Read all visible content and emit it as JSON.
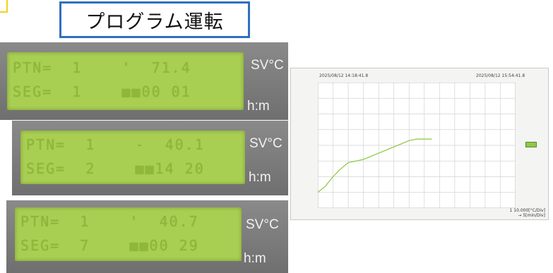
{
  "title": "プログラム運転",
  "displays": [
    {
      "line1": "PTN=  1    '  71.4",
      "line2": "SEG=  1    ■■00 01",
      "unit_top": "SV°C",
      "unit_bottom": "h:m"
    },
    {
      "line1": "PTN=  1    -  40.1",
      "line2": "SEG=  2    ■■14 20",
      "unit_top": "SV°C",
      "unit_bottom": "h:m"
    },
    {
      "line1": "PTN=  1    '  40.7",
      "line2": "SEG=  7    ■■00 29",
      "unit_top": "SV°C",
      "unit_bottom": "h:m"
    }
  ],
  "recorder": {
    "start_time": "2025/08/12 14:18:41.8",
    "end_time": "2025/08/12 15:54:41.8",
    "scale_line1": "1 10.000[°C/Div]",
    "scale_line2": "→ 5[min/Div]"
  },
  "colors": {
    "lcd": "#a9cf52",
    "panel": "#7b7b7b",
    "title_border": "#2f6fc0",
    "trend_line": "#8cc63f"
  },
  "chart_data": {
    "type": "line",
    "series": [
      {
        "x": [
          0,
          5,
          10,
          15,
          20,
          25,
          30,
          35,
          40,
          45,
          50,
          55,
          60,
          65,
          70,
          75
        ],
        "y": [
          1.0,
          1.4,
          2.0,
          2.5,
          2.9,
          3.0,
          3.1,
          3.3,
          3.5,
          3.7,
          3.9,
          4.1,
          4.3,
          4.4,
          4.4,
          4.4
        ]
      }
    ],
    "xlim": [
      0,
      130
    ],
    "ylim": [
      0,
      8
    ],
    "x_grid_major": 10,
    "grid": true
  }
}
